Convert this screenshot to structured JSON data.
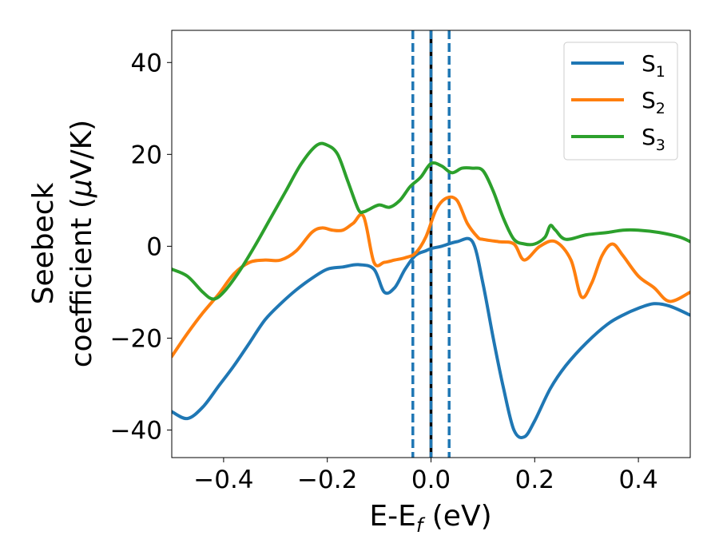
{
  "chart_data": {
    "type": "line",
    "title": "",
    "xlabel": {
      "main": "E-E",
      "subscript": "f",
      "suffix": " (eV)"
    },
    "ylabel": {
      "line1": "Seebeck",
      "line2_prefix": "coefficient  (",
      "mu": "μ",
      "line2_suffix": "V/K)"
    },
    "xlim": [
      -0.5,
      0.5
    ],
    "ylim": [
      -46,
      47
    ],
    "xticks": [
      -0.4,
      -0.2,
      0.0,
      0.2,
      0.4
    ],
    "xtick_labels": [
      "−0.4",
      "−0.2",
      "0.0",
      "0.2",
      "0.4"
    ],
    "yticks": [
      40,
      20,
      0,
      -20,
      -40
    ],
    "ytick_labels": [
      "40",
      "20",
      "0",
      "−20",
      "−40"
    ],
    "legend_position": "top-right",
    "vlines": [
      {
        "x": -0.035,
        "style": "dashed",
        "color": "#1f77b4"
      },
      {
        "x": 0.0,
        "style": "solid",
        "color": "#000000"
      },
      {
        "x": 0.0,
        "style": "dashed",
        "color": "#1f77b4"
      },
      {
        "x": 0.035,
        "style": "dashed",
        "color": "#1f77b4"
      }
    ],
    "series": [
      {
        "name": "S",
        "subscript": "1",
        "color": "#1f77b4",
        "x": [
          -0.5,
          -0.47,
          -0.44,
          -0.41,
          -0.38,
          -0.35,
          -0.32,
          -0.29,
          -0.26,
          -0.23,
          -0.2,
          -0.17,
          -0.14,
          -0.11,
          -0.09,
          -0.07,
          -0.05,
          -0.03,
          -0.01,
          0.0,
          0.02,
          0.05,
          0.08,
          0.1,
          0.12,
          0.14,
          0.16,
          0.18,
          0.2,
          0.23,
          0.26,
          0.3,
          0.34,
          0.37,
          0.4,
          0.43,
          0.46,
          0.5
        ],
        "values": [
          -36,
          -37.5,
          -35,
          -30.5,
          -26,
          -21,
          -16,
          -12.5,
          -9.5,
          -7,
          -5,
          -4.5,
          -4,
          -5,
          -10,
          -9,
          -5,
          -2,
          -1,
          -0.5,
          0,
          1,
          1,
          -8,
          -20,
          -31,
          -40,
          -41.5,
          -38,
          -31,
          -26,
          -21,
          -17,
          -15,
          -13.5,
          -12.5,
          -13,
          -15
        ]
      },
      {
        "name": "S",
        "subscript": "2",
        "color": "#ff7f0e",
        "x": [
          -0.5,
          -0.47,
          -0.44,
          -0.41,
          -0.38,
          -0.35,
          -0.32,
          -0.29,
          -0.26,
          -0.23,
          -0.21,
          -0.19,
          -0.17,
          -0.15,
          -0.13,
          -0.11,
          -0.09,
          -0.07,
          -0.05,
          -0.03,
          -0.01,
          0.01,
          0.03,
          0.05,
          0.07,
          0.09,
          0.1,
          0.13,
          0.16,
          0.18,
          0.21,
          0.24,
          0.27,
          0.29,
          0.31,
          0.33,
          0.35,
          0.37,
          0.4,
          0.43,
          0.46,
          0.5
        ],
        "values": [
          -24,
          -19,
          -14.5,
          -10.5,
          -6,
          -3.5,
          -3,
          -3,
          -1,
          3,
          4,
          3.5,
          3.5,
          5,
          6.5,
          -3.5,
          -3.5,
          -3,
          -2.5,
          -1.5,
          2,
          8,
          10.5,
          10,
          5,
          2,
          1.5,
          1,
          0.5,
          -3,
          0,
          1,
          -3,
          -11,
          -8,
          -2,
          0.5,
          -2,
          -6.5,
          -9,
          -12,
          -10
        ]
      },
      {
        "name": "S",
        "subscript": "3",
        "color": "#2ca02c",
        "x": [
          -0.5,
          -0.47,
          -0.44,
          -0.42,
          -0.4,
          -0.37,
          -0.34,
          -0.31,
          -0.28,
          -0.25,
          -0.22,
          -0.2,
          -0.18,
          -0.16,
          -0.14,
          -0.13,
          -0.12,
          -0.1,
          -0.08,
          -0.06,
          -0.04,
          -0.02,
          0.0,
          0.02,
          0.04,
          0.06,
          0.08,
          0.1,
          0.12,
          0.14,
          0.16,
          0.18,
          0.2,
          0.22,
          0.23,
          0.24,
          0.26,
          0.3,
          0.34,
          0.37,
          0.4,
          0.44,
          0.48,
          0.5
        ],
        "values": [
          -5,
          -6.5,
          -10,
          -11.5,
          -10,
          -5.5,
          0,
          6,
          12,
          18,
          22,
          22,
          20,
          14,
          8,
          7.5,
          8,
          9,
          8.5,
          10,
          13,
          15,
          18,
          17.5,
          16,
          17,
          17,
          16.5,
          12,
          6,
          1.5,
          0.5,
          0.5,
          2,
          4.5,
          3.5,
          1.5,
          2.5,
          3,
          3.5,
          3.5,
          3,
          2,
          1
        ]
      }
    ]
  }
}
